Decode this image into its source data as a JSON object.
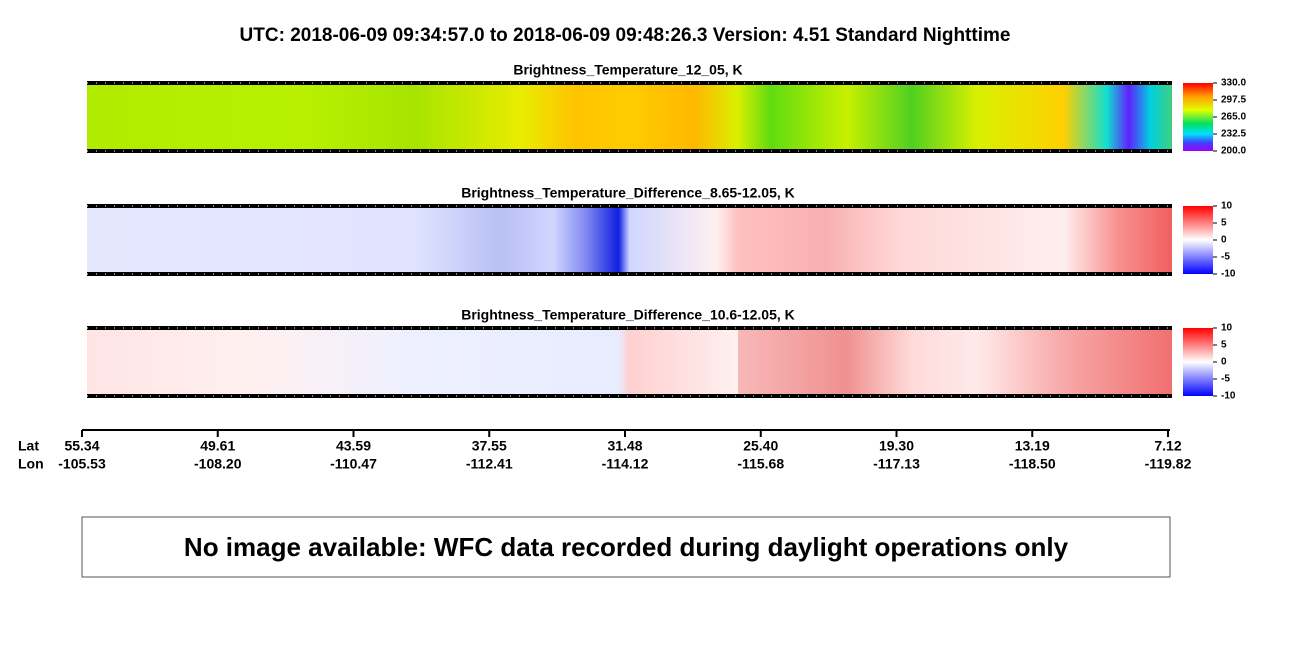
{
  "header": {
    "title": "UTC:  2018-06-09   09:34:57.0  to  2018-06-09   09:48:26.3    Version: 4.51  Standard Nighttime"
  },
  "panels": [
    {
      "title": "Brightness_Temperature_12_05, K",
      "colorbar": [
        "330.0",
        "297.5",
        "265.0",
        "232.5",
        "200.0"
      ]
    },
    {
      "title": "Brightness_Temperature_Difference_8.65-12.05, K",
      "colorbar": [
        "10",
        "5",
        "0",
        "-5",
        "-10"
      ]
    },
    {
      "title": "Brightness_Temperature_Difference_10.6-12.05, K",
      "colorbar": [
        "10",
        "5",
        "0",
        "-5",
        "-10"
      ]
    }
  ],
  "axis": {
    "lat_label": "Lat",
    "lon_label": "Lon",
    "lat": [
      "55.34",
      "49.61",
      "43.59",
      "37.55",
      "31.48",
      "25.40",
      "19.30",
      "13.19",
      "7.12"
    ],
    "lon": [
      "-105.53",
      "-108.20",
      "-110.47",
      "-112.41",
      "-114.12",
      "-115.68",
      "-117.13",
      "-118.50",
      "-119.82"
    ]
  },
  "notice": "No image available: WFC data recorded during daylight operations only"
}
